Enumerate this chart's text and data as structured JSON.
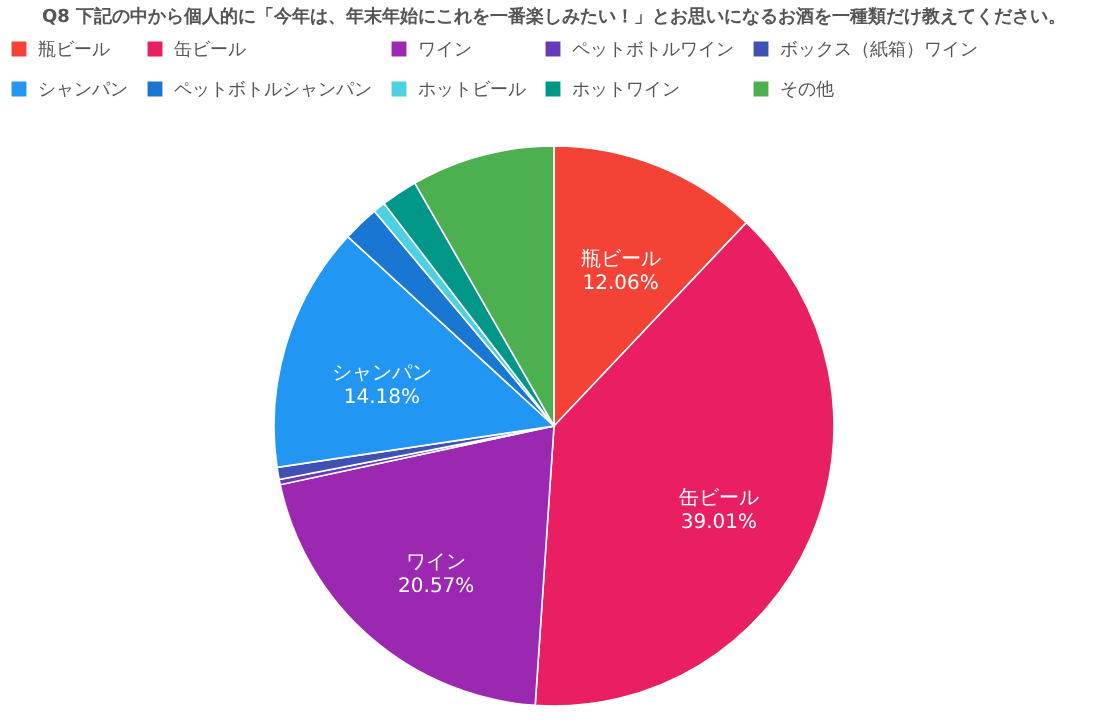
{
  "chart_data": {
    "type": "pie",
    "title": "Q8 下記の中から個人的に「今年は、年末年始にこれを一番楽しみたい！」とお思いになるお酒を一種類だけ教えてください。",
    "categories": [
      "瓶ビール",
      "缶ビール",
      "ワイン",
      "ペットボトルワイン",
      "ボックス（紙箱）ワイン",
      "シャンパン",
      "ペットボトルシャンパン",
      "ホットビール",
      "ホットワイン",
      "その他"
    ],
    "values": [
      12.06,
      39.01,
      20.57,
      0.3,
      0.7,
      14.18,
      2.1,
      0.7,
      2.1,
      8.28
    ],
    "colors": [
      "#f44336",
      "#e91e63",
      "#9c27b0",
      "#673ab7",
      "#3f51b5",
      "#2196f3",
      "#1976d2",
      "#4dd0e1",
      "#009688",
      "#4caf50"
    ],
    "value_labels": [
      "12.06%",
      "39.01%",
      "20.57%",
      null,
      null,
      "14.18%",
      null,
      null,
      null,
      null
    ],
    "legend": "top"
  }
}
